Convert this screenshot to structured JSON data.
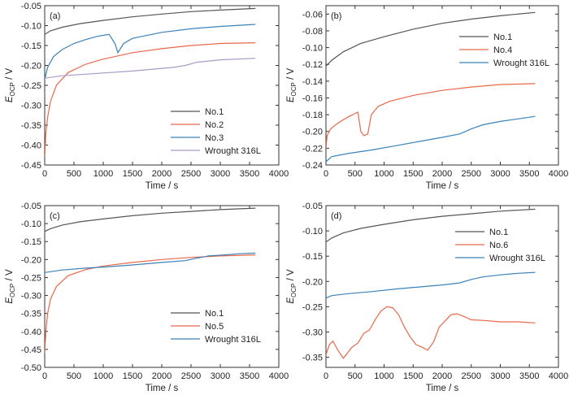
{
  "colors": {
    "No.1": "#555555",
    "No.2": "#e8684a",
    "No.3": "#3b82b8",
    "No.4": "#e8684a",
    "No.5": "#e8684a",
    "No.6": "#e8684a",
    "Wrought 316L (a)": "#a99ac8",
    "Wrought 316L": "#3b82b8",
    "axis": "#333333"
  },
  "chart_data": [
    {
      "type": "line",
      "panel": "(a)",
      "xlabel": "Time / s",
      "ylabel_main": "E",
      "ylabel_sub": "OCP",
      "ylabel_unit": " / V",
      "xlim": [
        0,
        4000
      ],
      "ylim": [
        -0.45,
        -0.05
      ],
      "xticks": [
        0,
        500,
        1000,
        1500,
        2000,
        2500,
        3000,
        3500,
        4000
      ],
      "yticks": [
        -0.45,
        -0.4,
        -0.35,
        -0.3,
        -0.25,
        -0.2,
        -0.15,
        -0.1,
        -0.05
      ],
      "legend_position": "bottom-right",
      "series": [
        {
          "name": "No.1",
          "x": [
            0,
            100,
            300,
            600,
            1000,
            1500,
            2000,
            2500,
            3000,
            3600
          ],
          "y": [
            -0.122,
            -0.113,
            -0.104,
            -0.095,
            -0.087,
            -0.078,
            -0.071,
            -0.065,
            -0.061,
            -0.057
          ]
        },
        {
          "name": "No.2",
          "x": [
            0,
            20,
            50,
            100,
            200,
            400,
            700,
            1000,
            1500,
            2000,
            2500,
            3000,
            3600
          ],
          "y": [
            -0.43,
            -0.37,
            -0.33,
            -0.29,
            -0.25,
            -0.218,
            -0.197,
            -0.184,
            -0.168,
            -0.158,
            -0.15,
            -0.145,
            -0.143
          ]
        },
        {
          "name": "No.3",
          "x": [
            0,
            50,
            150,
            300,
            500,
            700,
            900,
            1100,
            1200,
            1250,
            1350,
            1500,
            2000,
            2500,
            3000,
            3600
          ],
          "y": [
            -0.235,
            -0.205,
            -0.178,
            -0.16,
            -0.145,
            -0.135,
            -0.127,
            -0.122,
            -0.145,
            -0.168,
            -0.145,
            -0.132,
            -0.117,
            -0.108,
            -0.102,
            -0.097
          ]
        },
        {
          "name": "Wrought 316L",
          "x": [
            0,
            300,
            800,
            1500,
            2200,
            2400,
            2600,
            3000,
            3600
          ],
          "y": [
            -0.232,
            -0.226,
            -0.221,
            -0.214,
            -0.205,
            -0.2,
            -0.192,
            -0.186,
            -0.182
          ]
        }
      ]
    },
    {
      "type": "line",
      "panel": "(b)",
      "xlabel": "Time / s",
      "ylabel_main": "E",
      "ylabel_sub": "OCP",
      "ylabel_unit": " / V",
      "xlim": [
        0,
        4000
      ],
      "ylim": [
        -0.24,
        -0.05
      ],
      "xticks": [
        0,
        500,
        1000,
        1500,
        2000,
        2500,
        3000,
        3500,
        4000
      ],
      "yticks": [
        -0.24,
        -0.22,
        -0.2,
        -0.18,
        -0.16,
        -0.14,
        -0.12,
        -0.1,
        -0.08,
        -0.06
      ],
      "legend_position": "top-right",
      "series": [
        {
          "name": "No.1",
          "x": [
            0,
            100,
            300,
            600,
            1000,
            1500,
            2000,
            2500,
            3000,
            3600
          ],
          "y": [
            -0.122,
            -0.115,
            -0.105,
            -0.095,
            -0.087,
            -0.078,
            -0.071,
            -0.066,
            -0.062,
            -0.058
          ]
        },
        {
          "name": "No.4",
          "x": [
            0,
            20,
            80,
            150,
            250,
            400,
            550,
            600,
            650,
            720,
            780,
            900,
            1100,
            1500,
            2000,
            2500,
            3000,
            3600
          ],
          "y": [
            -0.22,
            -0.205,
            -0.197,
            -0.193,
            -0.188,
            -0.182,
            -0.177,
            -0.2,
            -0.205,
            -0.203,
            -0.18,
            -0.17,
            -0.164,
            -0.157,
            -0.151,
            -0.147,
            -0.144,
            -0.143
          ]
        },
        {
          "name": "Wrought 316L",
          "x": [
            0,
            100,
            400,
            800,
            1200,
            1600,
            2000,
            2300,
            2500,
            2700,
            3000,
            3300,
            3600
          ],
          "y": [
            -0.236,
            -0.23,
            -0.226,
            -0.222,
            -0.217,
            -0.212,
            -0.207,
            -0.203,
            -0.197,
            -0.192,
            -0.188,
            -0.185,
            -0.182
          ]
        }
      ]
    },
    {
      "type": "line",
      "panel": "(c)",
      "xlabel": "Time / s",
      "ylabel_main": "E",
      "ylabel_sub": "OCP",
      "ylabel_unit": " / V",
      "xlim": [
        0,
        4000
      ],
      "ylim": [
        -0.5,
        -0.05
      ],
      "xticks": [
        0,
        500,
        1000,
        1500,
        2000,
        2500,
        3000,
        3500,
        4000
      ],
      "yticks": [
        -0.5,
        -0.45,
        -0.4,
        -0.35,
        -0.3,
        -0.25,
        -0.2,
        -0.15,
        -0.1,
        -0.05
      ],
      "legend_position": "bottom-right",
      "series": [
        {
          "name": "No.1",
          "x": [
            0,
            100,
            300,
            600,
            1000,
            1500,
            2000,
            2500,
            3000,
            3600
          ],
          "y": [
            -0.122,
            -0.114,
            -0.104,
            -0.095,
            -0.087,
            -0.078,
            -0.071,
            -0.066,
            -0.061,
            -0.057
          ]
        },
        {
          "name": "No.5",
          "x": [
            0,
            20,
            50,
            100,
            200,
            400,
            700,
            1000,
            1500,
            2000,
            2500,
            3000,
            3600
          ],
          "y": [
            -0.46,
            -0.4,
            -0.35,
            -0.31,
            -0.275,
            -0.245,
            -0.228,
            -0.218,
            -0.208,
            -0.2,
            -0.194,
            -0.19,
            -0.187
          ]
        },
        {
          "name": "Wrought 316L",
          "x": [
            0,
            300,
            700,
            1000,
            1500,
            2000,
            2400,
            2600,
            2800,
            3000,
            3300,
            3600
          ],
          "y": [
            -0.236,
            -0.229,
            -0.224,
            -0.221,
            -0.215,
            -0.208,
            -0.203,
            -0.196,
            -0.19,
            -0.188,
            -0.184,
            -0.182
          ]
        }
      ]
    },
    {
      "type": "line",
      "panel": "(d)",
      "xlabel": "Time / s",
      "ylabel_main": "E",
      "ylabel_sub": "OCP",
      "ylabel_unit": " / V",
      "xlim": [
        0,
        4000
      ],
      "ylim": [
        -0.37,
        -0.05
      ],
      "xticks": [
        0,
        500,
        1000,
        1500,
        2000,
        2500,
        3000,
        3500,
        4000
      ],
      "yticks": [
        -0.35,
        -0.3,
        -0.25,
        -0.2,
        -0.15,
        -0.1,
        -0.05
      ],
      "legend_position": "top-right",
      "series": [
        {
          "name": "No.1",
          "x": [
            0,
            100,
            300,
            600,
            1000,
            1500,
            2000,
            2500,
            3000,
            3600
          ],
          "y": [
            -0.122,
            -0.114,
            -0.104,
            -0.095,
            -0.087,
            -0.078,
            -0.071,
            -0.066,
            -0.061,
            -0.057
          ]
        },
        {
          "name": "No.6",
          "x": [
            0,
            60,
            120,
            200,
            300,
            380,
            450,
            550,
            650,
            750,
            850,
            950,
            1050,
            1150,
            1250,
            1350,
            1450,
            1550,
            1650,
            1750,
            1850,
            1950,
            2050,
            2150,
            2250,
            2350,
            2500,
            2700,
            3000,
            3300,
            3600
          ],
          "y": [
            -0.345,
            -0.325,
            -0.318,
            -0.335,
            -0.352,
            -0.34,
            -0.33,
            -0.322,
            -0.303,
            -0.296,
            -0.275,
            -0.258,
            -0.25,
            -0.252,
            -0.266,
            -0.29,
            -0.31,
            -0.325,
            -0.33,
            -0.336,
            -0.32,
            -0.29,
            -0.278,
            -0.266,
            -0.264,
            -0.268,
            -0.276,
            -0.277,
            -0.28,
            -0.28,
            -0.282
          ]
        },
        {
          "name": "Wrought 316L",
          "x": [
            0,
            100,
            400,
            800,
            1200,
            1600,
            2000,
            2300,
            2500,
            2700,
            3000,
            3300,
            3600
          ],
          "y": [
            -0.233,
            -0.228,
            -0.224,
            -0.22,
            -0.215,
            -0.211,
            -0.207,
            -0.203,
            -0.196,
            -0.191,
            -0.187,
            -0.184,
            -0.182
          ]
        }
      ]
    }
  ]
}
